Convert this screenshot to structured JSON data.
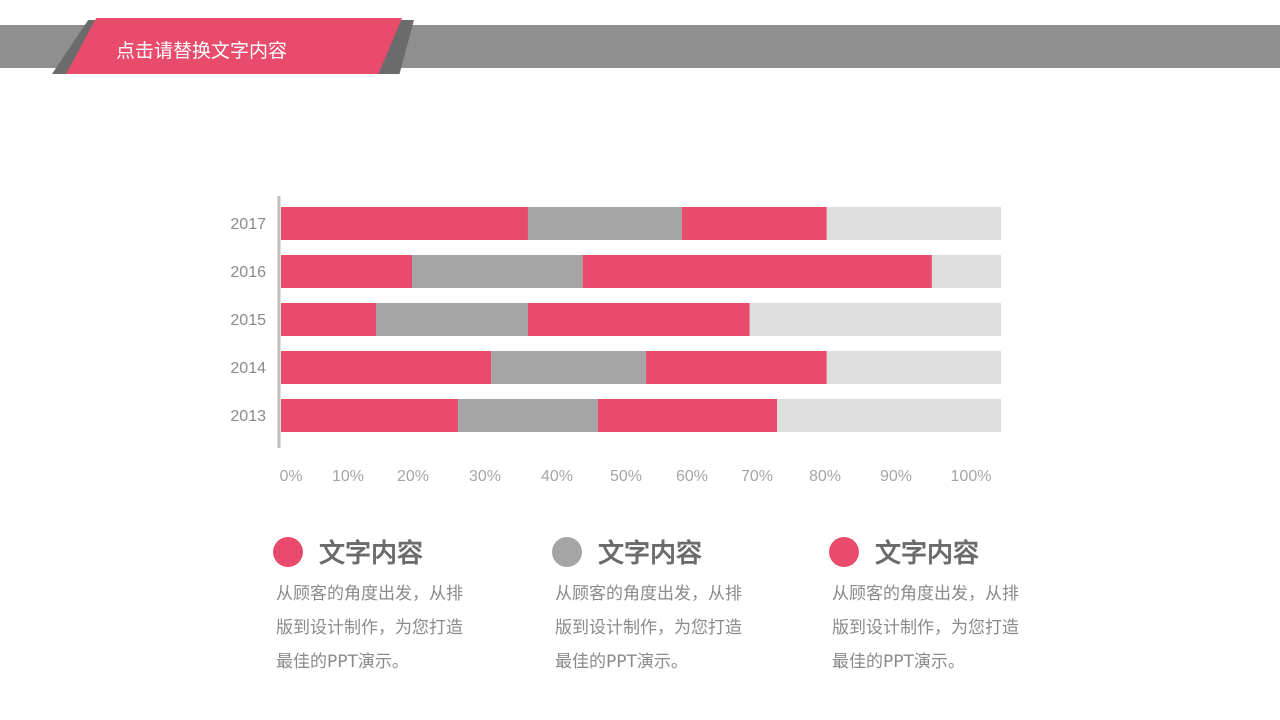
{
  "header": {
    "title": "点击请替换文字内容"
  },
  "colors": {
    "pink": "#e94b6c",
    "gray": "#a5a5a5",
    "light": "#dedede",
    "band": "#8f8f8f"
  },
  "chart_data": {
    "type": "bar",
    "orientation": "horizontal",
    "stacked": "100%",
    "categories": [
      "2017",
      "2016",
      "2015",
      "2014",
      "2013"
    ],
    "series": [
      {
        "values": [
          34.3,
          18.2,
          13.2,
          29.2,
          24.6
        ],
        "color": "#e94b6c"
      },
      {
        "values": [
          21.4,
          23.7,
          21.1,
          21.5,
          19.4
        ],
        "color": "#a5a5a5"
      },
      {
        "values": [
          20.1,
          48.5,
          30.8,
          25.1,
          24.9
        ],
        "color": "#e94b6c"
      },
      {
        "values": [
          24.2,
          9.6,
          34.9,
          24.2,
          31.1
        ],
        "color": "#dedede"
      }
    ],
    "xticks": [
      "0%",
      "10%",
      "20%",
      "30%",
      "40%",
      "50%",
      "60%",
      "70%",
      "80%",
      "90%",
      "100%"
    ],
    "xlim": [
      0,
      100
    ],
    "grid": false
  },
  "legend": [
    {
      "title": "文字内容",
      "text": "从顾客的角度出发，从排版到设计制作，为您打造最佳的PPT演示。",
      "color": "#e94b6c"
    },
    {
      "title": "文字内容",
      "text": "从顾客的角度出发，从排版到设计制作，为您打造最佳的PPT演示。",
      "color": "#a5a5a5"
    },
    {
      "title": "文字内容",
      "text": "从顾客的角度出发，从排版到设计制作，为您打造最佳的PPT演示。",
      "color": "#e94b6c"
    }
  ]
}
